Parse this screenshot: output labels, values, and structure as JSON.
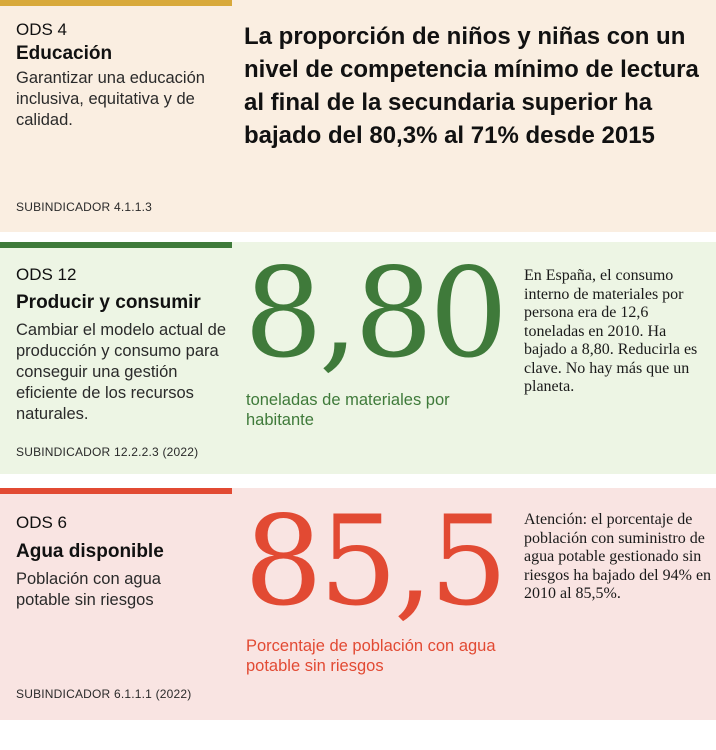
{
  "panels": [
    {
      "ods": "ODS 4",
      "title": "Educación",
      "description": "Garantizar una educación inclusiva, equitativa y de calidad.",
      "subindicator": "SUBINDICADOR 4.1.1.3",
      "headline": "La proporción de niños y niñas con un nivel de competencia mínimo de lectura al final de la secundaria superior ha bajado del 80,3% al 71% desde 2015",
      "accent_color": "#d8a93b",
      "background": "#faeee1"
    },
    {
      "ods": "ODS 12",
      "title": "Producir y consumir",
      "description": "Cambiar el modelo actual de producción y consumo para conseguir una gestión eficiente de los recursos naturales.",
      "subindicator": "SUBINDICADOR 12.2.2.3 (2022)",
      "figure": "8,80",
      "figure_caption": "toneladas de materiales por habitante",
      "note": "En España, el consumo interno de materiales por persona era de 12,6 toneladas en 2010. Ha bajado a 8,80. Reducirla es clave. No hay más que un planeta.",
      "accent_color": "#3f7a3a",
      "background": "#edf5e4"
    },
    {
      "ods": "ODS 6",
      "title": "Agua disponible",
      "description": "Población con agua potable sin riesgos",
      "subindicator": "SUBINDICADOR 6.1.1.1 (2022)",
      "figure": "85,5",
      "figure_caption": "Porcentaje de población con agua potable sin riesgos",
      "note": "Atención: el porcentaje de población con suministro de agua potable gestionado sin riesgos ha bajado del 94% en 2010 al 85,5%.",
      "accent_color": "#e24a33",
      "background": "#f9e4e2"
    }
  ]
}
